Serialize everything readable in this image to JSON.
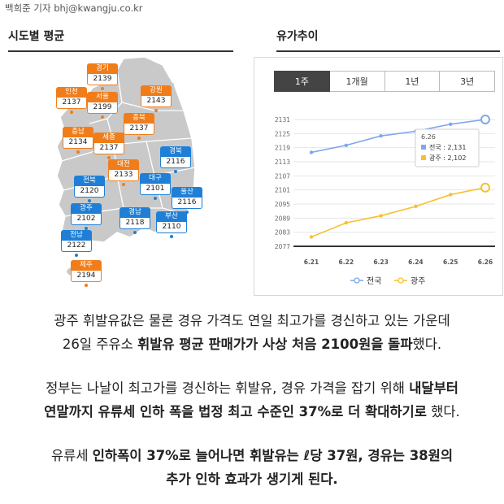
{
  "byline": "백희준 기자 bhj@kwangju.co.kr",
  "map_section": {
    "title": "시도별 평균"
  },
  "chart_section": {
    "title": "유가추이"
  },
  "map_regions": [
    {
      "name": "경기",
      "value": "2139",
      "color": "orange"
    },
    {
      "name": "인천",
      "value": "2137",
      "color": "orange"
    },
    {
      "name": "서울",
      "value": "2199",
      "color": "orange"
    },
    {
      "name": "강원",
      "value": "2143",
      "color": "orange"
    },
    {
      "name": "충북",
      "value": "2137",
      "color": "orange"
    },
    {
      "name": "충남",
      "value": "2134",
      "color": "orange"
    },
    {
      "name": "세종",
      "value": "2137",
      "color": "orange"
    },
    {
      "name": "경북",
      "value": "2116",
      "color": "blue"
    },
    {
      "name": "대전",
      "value": "2133",
      "color": "orange"
    },
    {
      "name": "전북",
      "value": "2120",
      "color": "blue"
    },
    {
      "name": "대구",
      "value": "2101",
      "color": "blue"
    },
    {
      "name": "울산",
      "value": "2116",
      "color": "blue"
    },
    {
      "name": "광주",
      "value": "2102",
      "color": "blue"
    },
    {
      "name": "경남",
      "value": "2118",
      "color": "blue"
    },
    {
      "name": "부산",
      "value": "2110",
      "color": "blue"
    },
    {
      "name": "전남",
      "value": "2122",
      "color": "blue"
    },
    {
      "name": "제주",
      "value": "2194",
      "color": "orange"
    }
  ],
  "colors": {
    "orange": "#f07d1a",
    "blue": "#1f7fd6",
    "national_line": "#7ea7ee",
    "gwangju_line": "#f7c02d"
  },
  "tabs": [
    "1주",
    "1개월",
    "1년",
    "3년"
  ],
  "active_tab": "1주",
  "chart_data": {
    "type": "line",
    "x": [
      "6.21",
      "6.22",
      "6.23",
      "6.24",
      "6.25",
      "6.26"
    ],
    "series": [
      {
        "name": "전국",
        "values": [
          2117,
          2120,
          2124,
          2126,
          2129,
          2131
        ],
        "color": "#7ea7ee"
      },
      {
        "name": "광주",
        "values": [
          2081,
          2087,
          2090,
          2094,
          2099,
          2102
        ],
        "color": "#f7c02d"
      }
    ],
    "yticks": [
      "2131",
      "2125",
      "2119",
      "2113",
      "2107",
      "2101",
      "2095",
      "2089",
      "2083",
      "2077"
    ],
    "ylim": [
      2077,
      2131
    ],
    "legend": "bottom",
    "tooltip": {
      "date": "6.26",
      "rows": [
        "전국 : 2,131",
        "광주 : 2,102"
      ]
    }
  },
  "paragraphs": [
    [
      "광주 휘발유값은 물론 경유 가격도 연일 최고가를 경신하고 있는 가운데",
      "26일 주유소 ",
      "휘발유 평균 판매가가 사상 처음 2100원을 돌파",
      "했다."
    ],
    [
      "정부는 나날이 최고가를 경신하는 휘발유, 경유 가격을 잡기 위해 ",
      "내달부터",
      "연말까지 유류세 인하 폭을 법정 최고 수준인 37%로 더 확대하기로",
      " 했다."
    ],
    [
      "유류세 ",
      "인하폭이 37%로 늘어나면 휘발유는 ℓ당 37원, 경유는 38원의",
      "추가 인하 효과가 생기게 된다."
    ]
  ]
}
